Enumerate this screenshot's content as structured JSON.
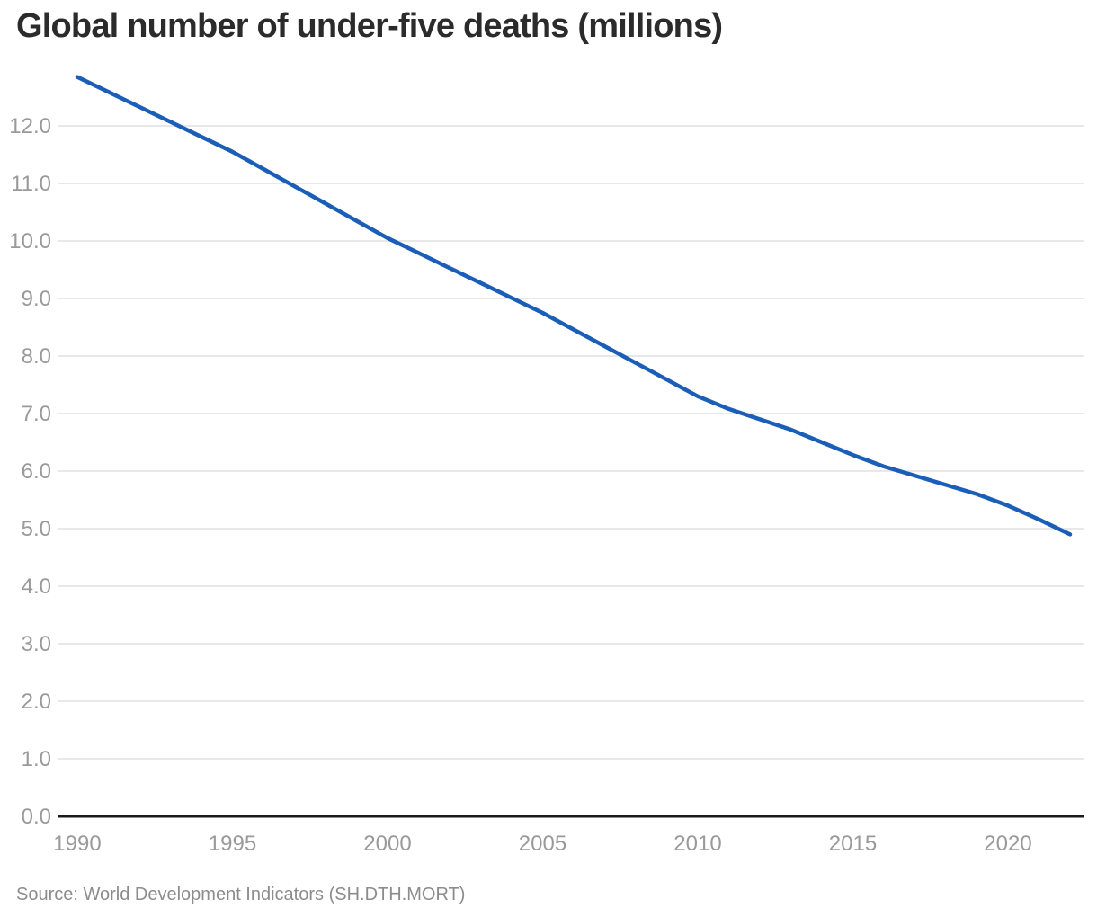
{
  "title": "Global number of under-five deaths (millions)",
  "source": "Source: World Development Indicators (SH.DTH.MORT)",
  "colors": {
    "line": "#1b5eb8",
    "grid": "#e8e8e8",
    "axis": "#1a1a1a",
    "tick_text": "#9a9a9a",
    "title_text": "#2b2b2b",
    "source_text": "#8c8c8c"
  },
  "chart_data": {
    "type": "line",
    "title": "Global number of under-five deaths (millions)",
    "xlabel": "",
    "ylabel": "",
    "grid": true,
    "legend": false,
    "xlim": [
      1989.4,
      2022.45
    ],
    "ylim": [
      0,
      12.9
    ],
    "x_ticks": [
      1990,
      1995,
      2000,
      2005,
      2010,
      2015,
      2020
    ],
    "x_tick_labels": [
      "1990",
      "1995",
      "2000",
      "2005",
      "2010",
      "2015",
      "2020"
    ],
    "y_ticks": [
      0,
      1,
      2,
      3,
      4,
      5,
      6,
      7,
      8,
      9,
      10,
      11,
      12
    ],
    "y_tick_labels": [
      "0.0",
      "1.0",
      "2.0",
      "3.0",
      "4.0",
      "5.0",
      "6.0",
      "7.0",
      "8.0",
      "9.0",
      "10.0",
      "11.0",
      "12.0"
    ],
    "series": [
      {
        "name": "Global number of under-five deaths (millions)",
        "x": [
          1990,
          1991,
          1992,
          1993,
          1994,
          1995,
          1996,
          1997,
          1998,
          1999,
          2000,
          2001,
          2002,
          2003,
          2004,
          2005,
          2006,
          2007,
          2008,
          2009,
          2010,
          2011,
          2012,
          2013,
          2014,
          2015,
          2016,
          2017,
          2018,
          2019,
          2020,
          2021,
          2022
        ],
        "values": [
          12.85,
          12.59,
          12.33,
          12.07,
          11.81,
          11.55,
          11.25,
          10.95,
          10.65,
          10.35,
          10.05,
          9.79,
          9.53,
          9.27,
          9.01,
          8.75,
          8.46,
          8.17,
          7.88,
          7.59,
          7.3,
          7.08,
          6.9,
          6.72,
          6.5,
          6.28,
          6.08,
          5.92,
          5.76,
          5.6,
          5.4,
          5.16,
          4.9
        ]
      }
    ]
  }
}
